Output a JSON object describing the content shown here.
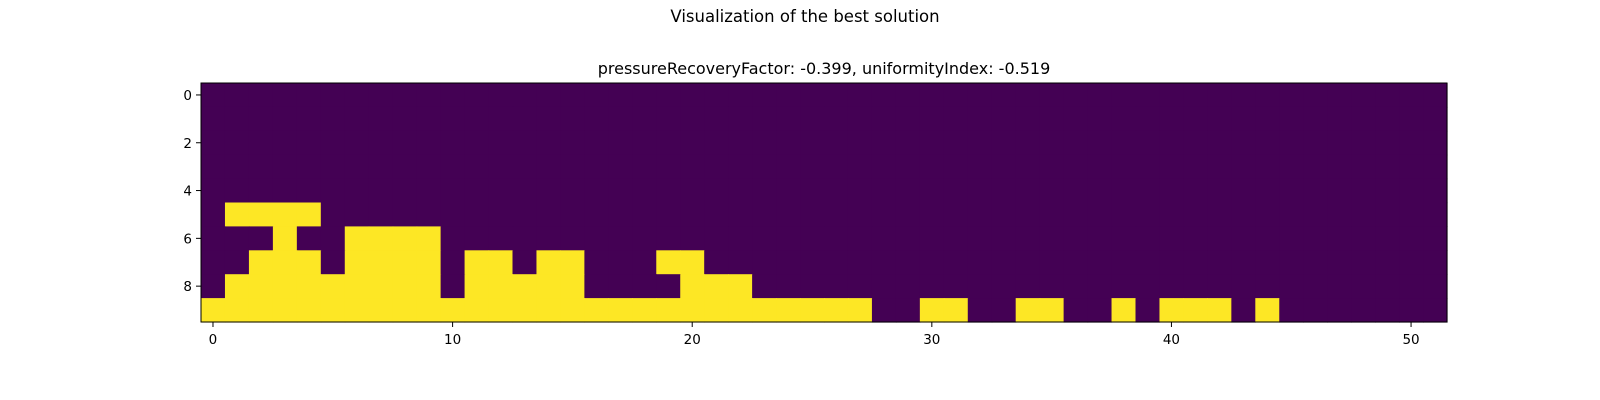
{
  "chart_data": {
    "type": "heatmap",
    "suptitle": "Visualization of the best solution",
    "title": "pressureRecoveryFactor: -0.399, uniformityIndex: -0.519",
    "xlabel": "",
    "ylabel": "",
    "rows": 10,
    "cols": 52,
    "x_ticks": [
      0,
      10,
      20,
      30,
      40,
      50
    ],
    "y_ticks": [
      0,
      2,
      4,
      6,
      8
    ],
    "xlim": [
      -0.5,
      51.5
    ],
    "ylim": [
      9.5,
      -0.5
    ],
    "grid": false,
    "colors": {
      "low": "#440154",
      "high": "#fde725",
      "axes": "#000000"
    },
    "filled_cells": {
      "5": [
        [
          1,
          4
        ]
      ],
      "6": [
        [
          3,
          3
        ],
        [
          6,
          9
        ]
      ],
      "7": [
        [
          2,
          4
        ],
        [
          6,
          9
        ],
        [
          11,
          12
        ],
        [
          14,
          15
        ],
        [
          19,
          20
        ]
      ],
      "8": [
        [
          1,
          9
        ],
        [
          11,
          15
        ],
        [
          20,
          22
        ]
      ],
      "9": [
        [
          0,
          27
        ],
        [
          30,
          31
        ],
        [
          34,
          35
        ],
        [
          38,
          38
        ],
        [
          40,
          42
        ],
        [
          44,
          44
        ]
      ]
    }
  }
}
